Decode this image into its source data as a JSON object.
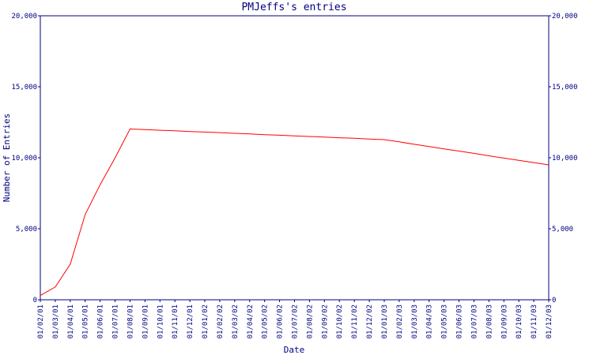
{
  "chart_data": {
    "type": "line",
    "title": "PMJeffs's entries",
    "x_label": "Date",
    "y_label": "Number of Entries",
    "categories": [
      "01/02/01",
      "01/03/01",
      "01/04/01",
      "01/05/01",
      "01/06/01",
      "01/07/01",
      "01/08/01",
      "01/09/01",
      "01/10/01",
      "01/11/01",
      "01/12/01",
      "01/01/02",
      "01/02/02",
      "01/03/02",
      "01/04/02",
      "01/05/02",
      "01/06/02",
      "01/07/02",
      "01/08/02",
      "01/09/02",
      "01/10/02",
      "01/11/02",
      "01/12/02",
      "01/01/03",
      "01/02/03",
      "01/03/03",
      "01/04/03",
      "01/05/03",
      "01/06/03",
      "01/07/03",
      "01/08/03",
      "01/09/03",
      "01/10/03",
      "01/11/03",
      "01/12/03"
    ],
    "series": [
      {
        "color": "#ff0000",
        "values": [
          300,
          900,
          2500,
          6000,
          8100,
          10000,
          12030,
          11990,
          11940,
          11900,
          11850,
          11810,
          11770,
          11720,
          11680,
          11630,
          11590,
          11540,
          11500,
          11460,
          11410,
          11370,
          11320,
          11280,
          11120,
          10950,
          10790,
          10630,
          10470,
          10310,
          10140,
          9980,
          9820,
          9660,
          9500
        ]
      }
    ],
    "ylim": [
      0,
      20000
    ],
    "yticks": [
      0,
      {
        "value": 5000,
        "label": "5,000"
      },
      {
        "value": 10000,
        "label": "10,000"
      },
      {
        "value": 15000,
        "label": "15,000"
      },
      {
        "value": 20000,
        "label": "20,000"
      }
    ]
  }
}
